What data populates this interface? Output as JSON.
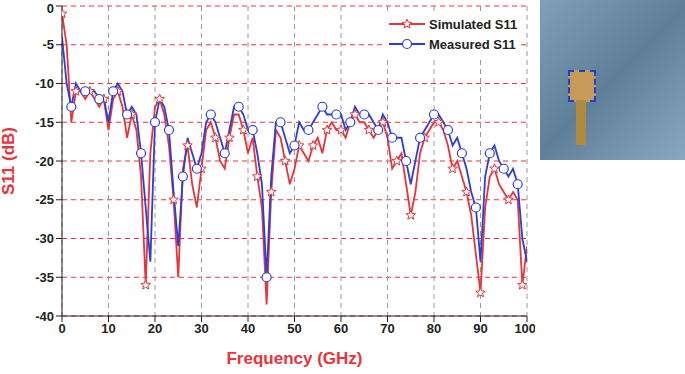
{
  "chart_data": {
    "type": "line",
    "x_label": "Frequency (GHz)",
    "y_label": "S11 (dB)",
    "x": [
      0,
      1,
      2,
      3,
      4,
      5,
      6,
      7,
      8,
      9,
      10,
      11,
      12,
      13,
      14,
      15,
      16,
      17,
      18,
      19,
      20,
      21,
      22,
      23,
      24,
      25,
      26,
      27,
      28,
      29,
      30,
      31,
      32,
      33,
      34,
      35,
      36,
      37,
      38,
      39,
      40,
      41,
      42,
      43,
      44,
      45,
      46,
      47,
      48,
      49,
      50,
      51,
      52,
      53,
      54,
      55,
      56,
      57,
      58,
      59,
      60,
      61,
      62,
      63,
      64,
      65,
      66,
      67,
      68,
      69,
      70,
      71,
      72,
      73,
      74,
      75,
      76,
      77,
      78,
      79,
      80,
      81,
      82,
      83,
      84,
      85,
      86,
      87,
      88,
      89,
      90,
      91,
      92,
      93,
      94,
      95,
      96,
      97,
      98,
      99,
      100
    ],
    "series": [
      {
        "name": "Simulated S11",
        "color": "#e8343a",
        "marker": "star",
        "values": [
          -1,
          -5,
          -15,
          -11,
          -11,
          -12,
          -11,
          -12,
          -13,
          -12,
          -16,
          -12,
          -11,
          -13,
          -17,
          -14,
          -16,
          -22,
          -36,
          -19,
          -13,
          -12,
          -14,
          -18,
          -25,
          -35,
          -21,
          -18,
          -23,
          -26,
          -21,
          -16,
          -15,
          -17,
          -20,
          -21,
          -17,
          -14,
          -14,
          -16,
          -19,
          -17,
          -22,
          -26,
          -38.5,
          -24,
          -16,
          -17,
          -20,
          -23,
          -21,
          -18,
          -19,
          -20,
          -18,
          -17,
          -19,
          -16,
          -15,
          -16,
          -16,
          -17,
          -15,
          -14,
          -15,
          -15,
          -16,
          -17,
          -16,
          -15,
          -17,
          -21,
          -20,
          -19,
          -23,
          -27,
          -24,
          -19,
          -17,
          -16,
          -15,
          -15,
          -16,
          -18,
          -21,
          -20,
          -22,
          -24,
          -27,
          -32,
          -37,
          -26,
          -22,
          -21,
          -23,
          -24,
          -25,
          -24,
          -25,
          -36,
          -31
        ]
      },
      {
        "name": "Measured S11",
        "color": "#2b3fd6",
        "marker": "circle",
        "values": [
          -4,
          -10,
          -13,
          -10,
          -11,
          -11,
          -11,
          -11,
          -12,
          -12,
          -15,
          -11,
          -10,
          -11,
          -14,
          -13,
          -14,
          -19,
          -26,
          -33,
          -15,
          -12,
          -13,
          -16,
          -24,
          -31,
          -22,
          -17,
          -19,
          -21,
          -19,
          -15,
          -14,
          -15,
          -17,
          -19,
          -16,
          -13,
          -13,
          -14,
          -16,
          -16,
          -19,
          -23,
          -35,
          -22,
          -15,
          -15,
          -17,
          -19,
          -18,
          -15,
          -16,
          -16,
          -15,
          -14,
          -13,
          -14,
          -14,
          -14,
          -14,
          -16,
          -15,
          -13,
          -14,
          -14,
          -14,
          -15,
          -16,
          -14,
          -15,
          -17,
          -17,
          -17,
          -20,
          -23,
          -20,
          -17,
          -16,
          -15,
          -14,
          -14,
          -15,
          -16,
          -18,
          -17,
          -19,
          -21,
          -24,
          -26,
          -33,
          -22,
          -19,
          -18,
          -20,
          -21,
          -22,
          -21,
          -23,
          -30,
          -33
        ]
      }
    ],
    "xlim": [
      0,
      100
    ],
    "xticks": [
      0,
      10,
      20,
      30,
      40,
      50,
      60,
      70,
      80,
      90,
      100
    ],
    "ylim": [
      -40,
      0
    ],
    "yticks": [
      -40,
      -35,
      -30,
      -25,
      -20,
      -15,
      -10,
      -5,
      0
    ],
    "grid": true,
    "legend": "upper right"
  }
}
